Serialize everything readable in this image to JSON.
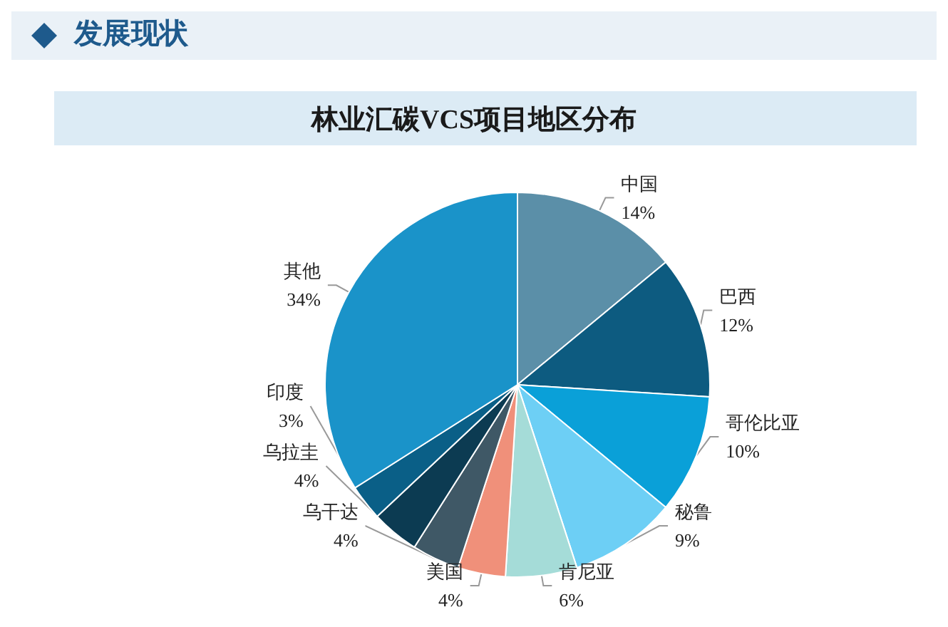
{
  "chart_data": {
    "type": "pie",
    "title": "林业汇碳VCS项目地区分布",
    "annotations": [
      "发展现状"
    ],
    "categories": [
      "中国",
      "巴西",
      "哥伦比亚",
      "秘鲁",
      "肯尼亚",
      "美国",
      "乌干达",
      "乌拉圭",
      "印度",
      "其他"
    ],
    "values": [
      14,
      12,
      10,
      9,
      6,
      4,
      4,
      4,
      3,
      34
    ],
    "value_labels": [
      "14%",
      "12%",
      "10%",
      "9%",
      "6%",
      "4%",
      "4%",
      "4%",
      "3%",
      "34%"
    ],
    "colors": [
      "#5b8fa8",
      "#0d5b80",
      "#0aa0d8",
      "#6dcff5",
      "#a5dcd8",
      "#f0907a",
      "#3f5866",
      "#0c3b52",
      "#0a5f87",
      "#1a93c9"
    ],
    "legend": false
  }
}
